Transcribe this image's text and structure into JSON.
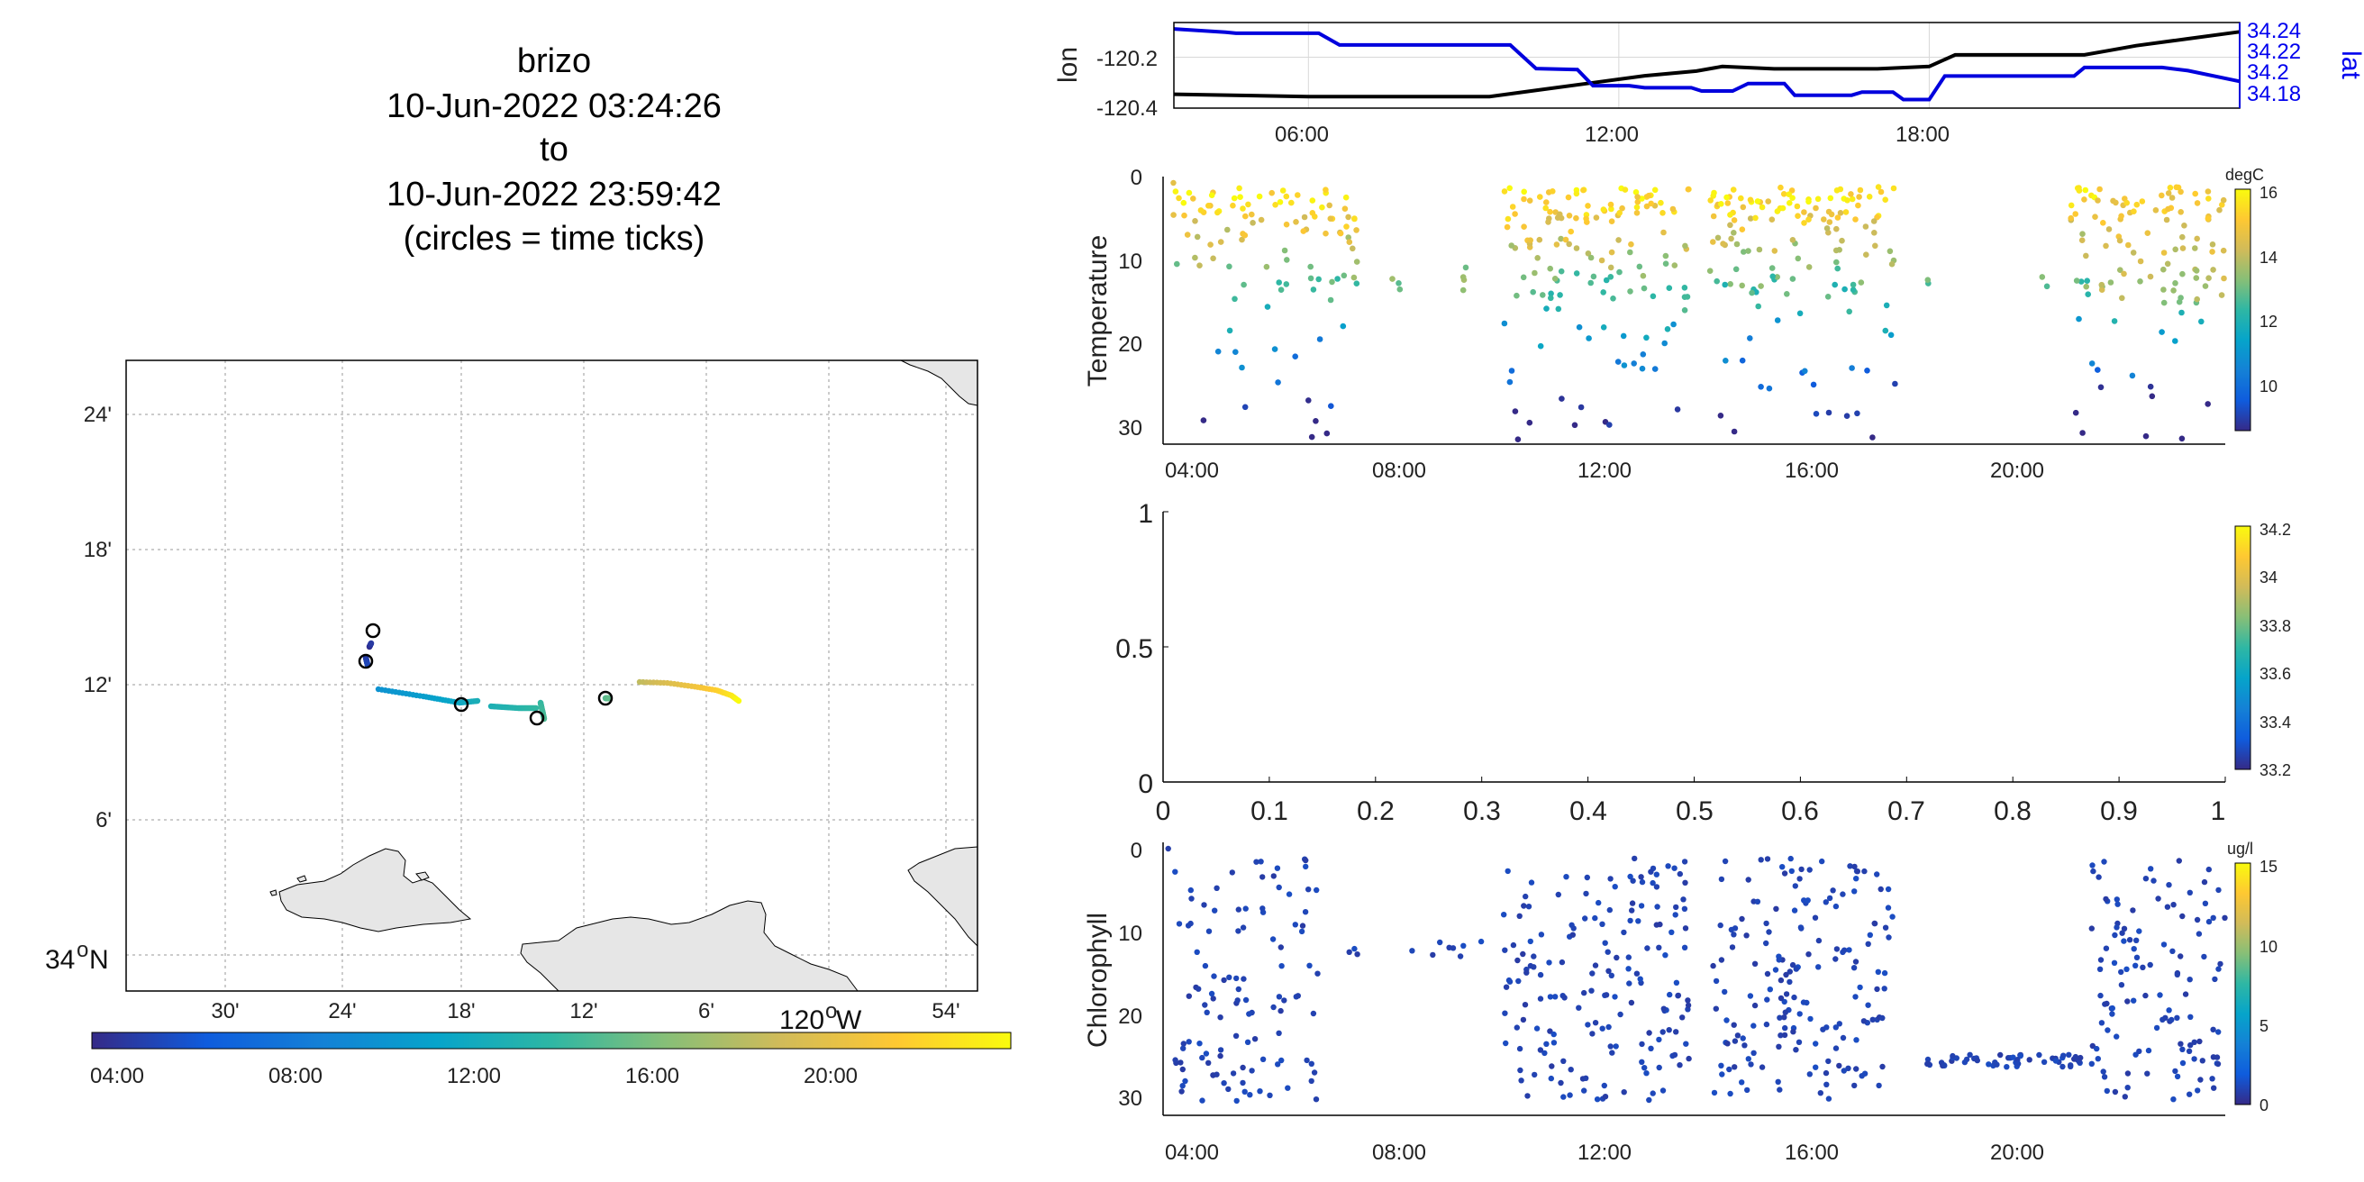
{
  "title": {
    "lines": [
      "brizo",
      "10-Jun-2022 03:24:26",
      "to",
      "10-Jun-2022 23:59:42",
      "(circles = time ticks)"
    ]
  },
  "map": {
    "lat_ticks": [
      "24'",
      "18'",
      "12'",
      "6'"
    ],
    "lat_base_label": "34",
    "lat_base_suffix": "N",
    "lon_ticks": [
      "30'",
      "24'",
      "18'",
      "12'",
      "6'",
      "54'"
    ],
    "lon_base_label": "120",
    "lon_base_suffix": "W",
    "grid": true,
    "colorbar_ticks": [
      "04:00",
      "08:00",
      "12:00",
      "16:00",
      "20:00"
    ]
  },
  "colors": {
    "track_line": "#000000",
    "lat_line": "#0000dd",
    "land": "#e6e6e6",
    "grid": "#9a9a9a",
    "parula": [
      "#352a87",
      "#0f5cdd",
      "#1481d6",
      "#06a4ca",
      "#2eb7a4",
      "#87bf77",
      "#d1bb59",
      "#fec832",
      "#f9fb0e"
    ]
  },
  "panels": {
    "temperature_ylabel": "Temperature",
    "chlorophyll_ylabel": "Chlorophyll",
    "salinity_ylabel": ""
  },
  "chart_data": [
    {
      "type": "line",
      "name": "position-timeseries",
      "x_ticks": [
        "06:00",
        "12:00",
        "18:00"
      ],
      "ylabel": "lon",
      "ylabel_right": "lat",
      "y_ticks": [
        "-120.2",
        "-120.4"
      ],
      "y_ticks_right": [
        "34.24",
        "34.22",
        "34.2",
        "34.18"
      ],
      "ylim": [
        -120.42,
        -120.05
      ],
      "ylim_right": [
        34.165,
        34.245
      ],
      "xlim": [
        3.4,
        24.0
      ],
      "series": [
        {
          "axis": "left",
          "x": [
            3.4,
            6.0,
            8.0,
            9.5,
            10.5,
            11.5,
            12.5,
            13.5,
            14.0,
            15.0,
            16.0,
            17.0,
            18.0,
            18.5,
            19.0,
            20.0,
            21.0,
            21.5,
            22.0,
            23.0,
            24.0
          ],
          "y": [
            -120.36,
            -120.37,
            -120.37,
            -120.37,
            -120.34,
            -120.31,
            -120.28,
            -120.26,
            -120.24,
            -120.25,
            -120.25,
            -120.25,
            -120.24,
            -120.19,
            -120.19,
            -120.19,
            -120.19,
            -120.17,
            -120.15,
            -120.12,
            -120.09
          ]
        },
        {
          "axis": "right",
          "x": [
            3.4,
            4.4,
            4.6,
            6.2,
            6.6,
            9.9,
            10.4,
            11.2,
            11.5,
            12.2,
            12.5,
            13.4,
            13.6,
            14.2,
            14.5,
            15.2,
            15.4,
            16.5,
            16.7,
            17.3,
            17.5,
            18.0,
            18.3,
            20.8,
            21.0,
            22.5,
            23.0,
            24.0
          ],
          "y": [
            34.239,
            34.236,
            34.235,
            34.235,
            34.224,
            34.224,
            34.202,
            34.201,
            34.186,
            34.186,
            34.184,
            34.184,
            34.181,
            34.181,
            34.188,
            34.188,
            34.177,
            34.177,
            34.18,
            34.18,
            34.173,
            34.173,
            34.195,
            34.195,
            34.203,
            34.203,
            34.2,
            34.19
          ]
        }
      ]
    },
    {
      "type": "scatter",
      "name": "temperature-profile",
      "x_ticks": [
        "04:00",
        "08:00",
        "12:00",
        "16:00",
        "20:00"
      ],
      "y_ticks": [
        "0",
        "10",
        "20",
        "30"
      ],
      "ylim": [
        0,
        32
      ],
      "y_reversed": true,
      "colorbar_label": "degC",
      "colorbar_ticks": [
        "16",
        "14",
        "12",
        "10"
      ],
      "colorbar_range": [
        8.5,
        16
      ],
      "segments": [
        {
          "t": [
            3.6,
            7.2
          ],
          "n": 110
        },
        {
          "t": [
            7.8,
            8.0
          ],
          "n": 3
        },
        {
          "t": [
            9.2,
            9.6
          ],
          "n": 4
        },
        {
          "t": [
            10.0,
            13.6
          ],
          "n": 150
        },
        {
          "t": [
            14.0,
            17.6
          ],
          "n": 150
        },
        {
          "t": [
            18.2,
            18.3
          ],
          "n": 2
        },
        {
          "t": [
            20.4,
            20.6
          ],
          "n": 2
        },
        {
          "t": [
            21.0,
            24.0
          ],
          "n": 120
        }
      ]
    },
    {
      "type": "scatter",
      "name": "salinity-profile",
      "x_ticks": [
        "0",
        "0.1",
        "0.2",
        "0.3",
        "0.4",
        "0.5",
        "0.6",
        "0.7",
        "0.8",
        "0.9",
        "1"
      ],
      "y_ticks": [
        "0",
        "0.5",
        "1"
      ],
      "xlim": [
        0,
        1
      ],
      "ylim": [
        0,
        1
      ],
      "colorbar_ticks": [
        "34.2",
        "34",
        "33.8",
        "33.6",
        "33.4",
        "33.2"
      ],
      "colorbar_range": [
        33.2,
        34.2
      ],
      "points": []
    },
    {
      "type": "scatter",
      "name": "chlorophyll-profile",
      "x_ticks": [
        "04:00",
        "08:00",
        "12:00",
        "16:00",
        "20:00"
      ],
      "y_ticks": [
        "0",
        "10",
        "20",
        "30"
      ],
      "ylim": [
        0,
        31
      ],
      "y_reversed": true,
      "colorbar_label": "ug/l",
      "colorbar_ticks": [
        "15",
        "10",
        "5",
        "0"
      ],
      "colorbar_range": [
        0,
        15
      ],
      "segments": [
        {
          "t": [
            3.6,
            6.4
          ],
          "n": 110
        },
        {
          "t": [
            7.0,
            7.2
          ],
          "n": 3
        },
        {
          "t": [
            8.2,
            9.6
          ],
          "n": 8
        },
        {
          "t": [
            10.0,
            13.6
          ],
          "n": 170
        },
        {
          "t": [
            14.0,
            17.6
          ],
          "n": 170
        },
        {
          "t": [
            18.2,
            21.2
          ],
          "n": 55
        },
        {
          "t": [
            21.4,
            24.0
          ],
          "n": 120
        }
      ]
    }
  ]
}
